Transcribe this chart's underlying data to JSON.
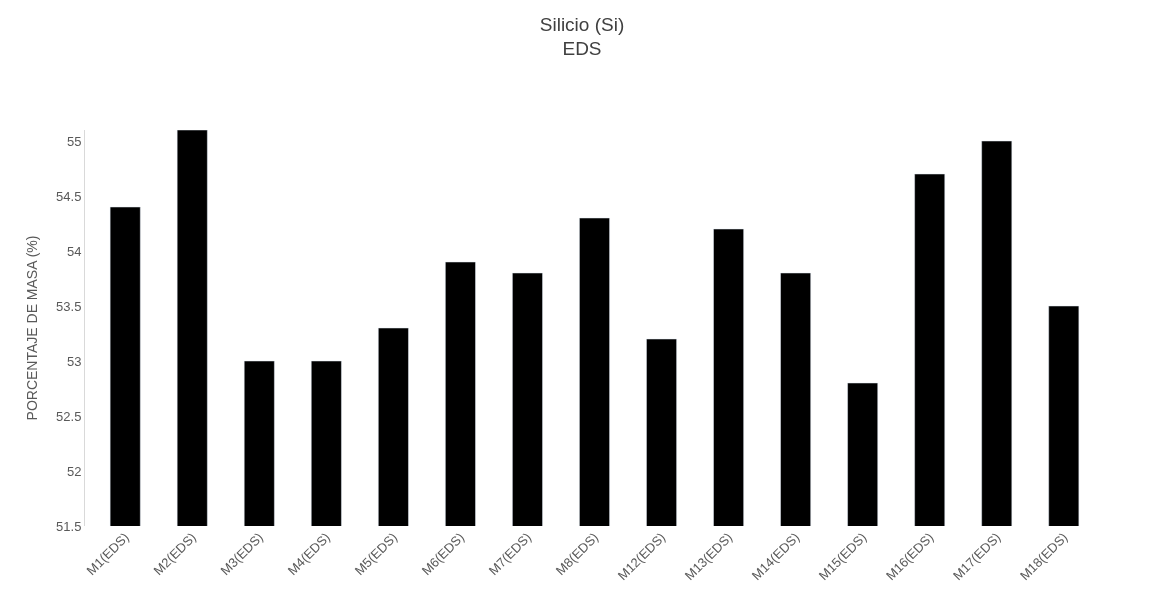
{
  "chart_data": {
    "type": "bar",
    "title": "Silicio (Si)\nEDS",
    "ylabel": "PORCENTAJE DE MASA (%)",
    "categories": [
      "M1(EDS)",
      "M2(EDS)",
      "M3(EDS)",
      "M4(EDS)",
      "M5(EDS)",
      "M6(EDS)",
      "M7(EDS)",
      "M8(EDS)",
      "M12(EDS)",
      "M13(EDS)",
      "M14(EDS)",
      "M15(EDS)",
      "M16(EDS)",
      "M17(EDS)",
      "M18(EDS)"
    ],
    "values": [
      54.4,
      55.1,
      53.0,
      53.0,
      53.3,
      53.9,
      53.8,
      54.3,
      53.2,
      54.2,
      53.8,
      52.8,
      54.7,
      55.0,
      53.5
    ],
    "color": "#000000",
    "ylim": [
      51.5,
      55.1
    ],
    "yticks": [
      51.5,
      52,
      52.5,
      53,
      53.5,
      54,
      54.5,
      55
    ]
  }
}
